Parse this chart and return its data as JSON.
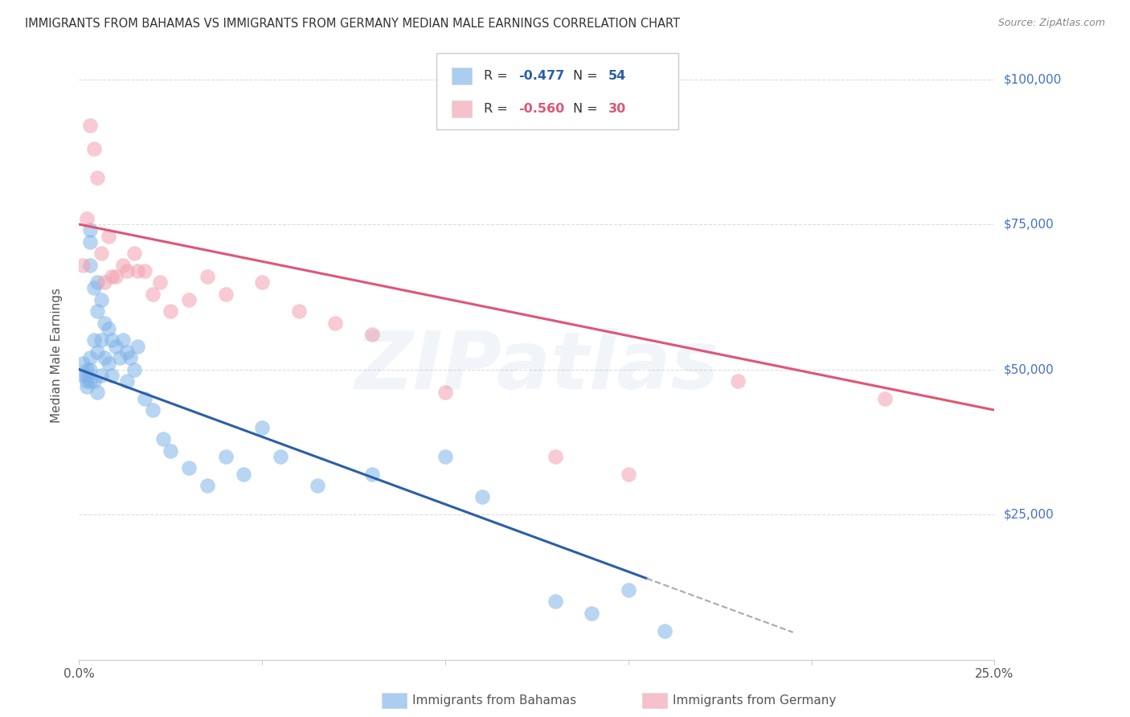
{
  "title": "IMMIGRANTS FROM BAHAMAS VS IMMIGRANTS FROM GERMANY MEDIAN MALE EARNINGS CORRELATION CHART",
  "source": "Source: ZipAtlas.com",
  "ylabel": "Median Male Earnings",
  "watermark": "ZIPatlas",
  "xlim": [
    0.0,
    0.25
  ],
  "ylim": [
    0,
    105000
  ],
  "yticks": [
    0,
    25000,
    50000,
    75000,
    100000
  ],
  "xticks": [
    0.0,
    0.05,
    0.1,
    0.15,
    0.2,
    0.25
  ],
  "xtick_labels": [
    "0.0%",
    "",
    "",
    "",
    "",
    "25.0%"
  ],
  "legend_R_bahamas": "-0.477",
  "legend_N_bahamas": "54",
  "legend_R_germany": "-0.560",
  "legend_N_germany": "30",
  "color_bahamas": "#7EB3E8",
  "color_germany": "#F4A0B0",
  "line_color_bahamas": "#2B5EAA",
  "line_color_germany": "#E05575",
  "background_color": "#FFFFFF",
  "grid_color": "#DDDDDD",
  "axis_label_color": "#4472C4",
  "title_color": "#333333",
  "bahamas_x": [
    0.001,
    0.001,
    0.002,
    0.002,
    0.002,
    0.002,
    0.003,
    0.003,
    0.003,
    0.003,
    0.003,
    0.003,
    0.004,
    0.004,
    0.004,
    0.005,
    0.005,
    0.005,
    0.005,
    0.006,
    0.006,
    0.006,
    0.007,
    0.007,
    0.008,
    0.008,
    0.009,
    0.009,
    0.01,
    0.011,
    0.012,
    0.013,
    0.013,
    0.014,
    0.015,
    0.016,
    0.018,
    0.02,
    0.023,
    0.025,
    0.03,
    0.035,
    0.04,
    0.045,
    0.05,
    0.055,
    0.065,
    0.08,
    0.1,
    0.11,
    0.13,
    0.14,
    0.15,
    0.16
  ],
  "bahamas_y": [
    51000,
    49000,
    50000,
    49000,
    48000,
    47000,
    74000,
    72000,
    68000,
    52000,
    50000,
    48000,
    64000,
    55000,
    48000,
    65000,
    60000,
    53000,
    46000,
    62000,
    55000,
    49000,
    58000,
    52000,
    57000,
    51000,
    55000,
    49000,
    54000,
    52000,
    55000,
    53000,
    48000,
    52000,
    50000,
    54000,
    45000,
    43000,
    38000,
    36000,
    33000,
    30000,
    35000,
    32000,
    40000,
    35000,
    30000,
    32000,
    35000,
    28000,
    10000,
    8000,
    12000,
    5000
  ],
  "germany_x": [
    0.001,
    0.002,
    0.003,
    0.004,
    0.005,
    0.006,
    0.007,
    0.008,
    0.009,
    0.01,
    0.012,
    0.013,
    0.015,
    0.016,
    0.018,
    0.02,
    0.022,
    0.025,
    0.03,
    0.035,
    0.04,
    0.05,
    0.06,
    0.07,
    0.08,
    0.1,
    0.13,
    0.15,
    0.18,
    0.22
  ],
  "germany_y": [
    68000,
    76000,
    92000,
    88000,
    83000,
    70000,
    65000,
    73000,
    66000,
    66000,
    68000,
    67000,
    70000,
    67000,
    67000,
    63000,
    65000,
    60000,
    62000,
    66000,
    63000,
    65000,
    60000,
    58000,
    56000,
    46000,
    35000,
    32000,
    48000,
    45000
  ]
}
